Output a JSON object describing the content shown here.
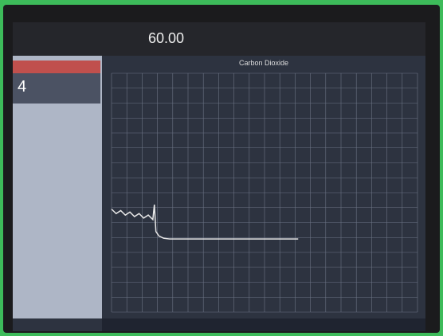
{
  "toolbar": {
    "readout": "60.00"
  },
  "sidebar": {
    "value": "4"
  },
  "chart": {
    "type": "line",
    "title": "Carbon Dioxide",
    "x": [
      0,
      0.3,
      0.6,
      0.9,
      1.2,
      1.5,
      1.8,
      2.1,
      2.4,
      2.7,
      2.8,
      2.9,
      3.1,
      3.4,
      3.8,
      4.5,
      6,
      8,
      10,
      12.2
    ],
    "values": [
      6.9,
      6.6,
      6.8,
      6.5,
      6.7,
      6.4,
      6.6,
      6.3,
      6.5,
      6.2,
      7.2,
      5.4,
      5.1,
      4.95,
      4.9,
      4.9,
      4.9,
      4.9,
      4.9,
      4.9
    ],
    "xlim": [
      0,
      20
    ],
    "ylim": [
      0,
      16
    ],
    "color": "#e8e8e8"
  }
}
